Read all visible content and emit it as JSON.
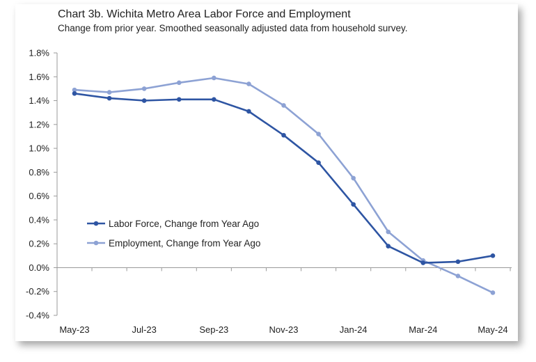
{
  "chart_data": {
    "type": "line",
    "title": "Chart 3b. Wichita Metro Area Labor Force and Employment",
    "subtitle": "Change from prior year. Smoothed seasonally adjusted data from household survey.",
    "x": [
      "May-23",
      "Jun-23",
      "Jul-23",
      "Aug-23",
      "Sep-23",
      "Oct-23",
      "Nov-23",
      "Dec-23",
      "Jan-24",
      "Feb-24",
      "Mar-24",
      "Apr-24",
      "May-24"
    ],
    "xticks": [
      "May-23",
      "Jul-23",
      "Sep-23",
      "Nov-23",
      "Jan-24",
      "Mar-24",
      "May-24"
    ],
    "yticks": [
      "1.8%",
      "1.6%",
      "1.4%",
      "1.2%",
      "1.0%",
      "0.8%",
      "0.6%",
      "0.4%",
      "0.2%",
      "0.0%",
      "-0.2%",
      "-0.4%"
    ],
    "ylim": [
      -0.4,
      1.8
    ],
    "y_unit": "%",
    "grid": false,
    "legend_position": "lower-left",
    "series": [
      {
        "name": "Labor Force, Change from Year Ago",
        "color": "#2e55a3",
        "values": [
          1.46,
          1.42,
          1.4,
          1.41,
          1.41,
          1.31,
          1.11,
          0.88,
          0.53,
          0.18,
          0.04,
          0.05,
          0.1
        ]
      },
      {
        "name": "Employment, Change from Year Ago",
        "color": "#8da2d4",
        "values": [
          1.49,
          1.47,
          1.5,
          1.55,
          1.59,
          1.54,
          1.36,
          1.12,
          0.75,
          0.3,
          0.06,
          -0.07,
          -0.21
        ]
      }
    ]
  }
}
